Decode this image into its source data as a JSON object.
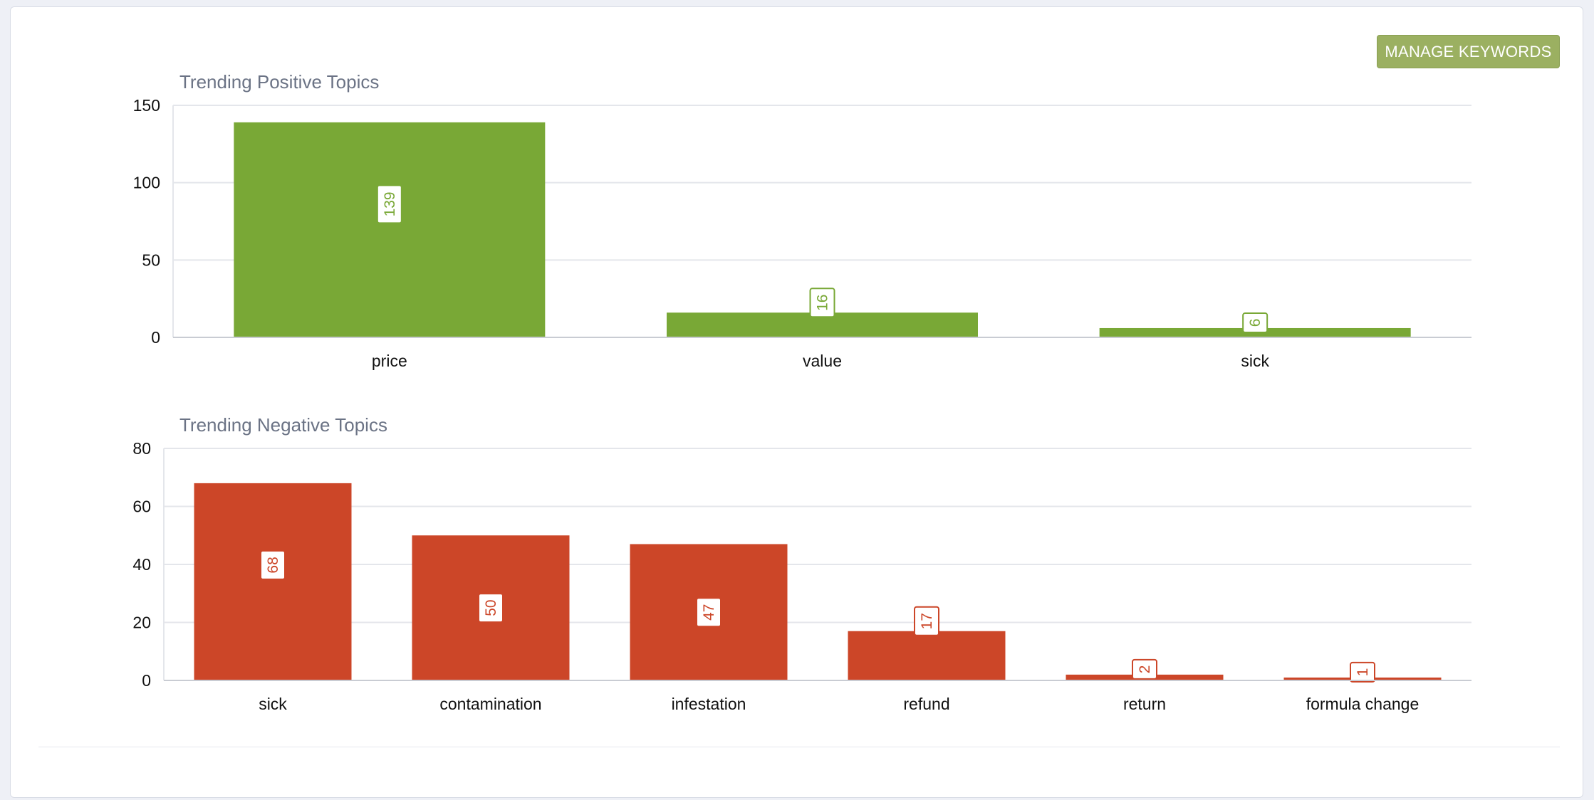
{
  "toolbar": {
    "manage_keywords_label": "MANAGE KEYWORDS"
  },
  "colors": {
    "positive": "#79a836",
    "negative": "#cc4628",
    "button": "#9bb061"
  },
  "chart_data": [
    {
      "type": "bar",
      "title": "Trending Positive Topics",
      "categories": [
        "price",
        "value",
        "sick"
      ],
      "values": [
        139,
        16,
        6
      ],
      "ylim": [
        0,
        150
      ],
      "yticks": [
        0,
        50,
        100,
        150
      ],
      "xlabel": "",
      "ylabel": "",
      "grid": true,
      "color": "#79a836"
    },
    {
      "type": "bar",
      "title": "Trending Negative Topics",
      "categories": [
        "sick",
        "contamination",
        "infestation",
        "refund",
        "return",
        "formula change"
      ],
      "values": [
        68,
        50,
        47,
        17,
        2,
        1
      ],
      "ylim": [
        0,
        80
      ],
      "yticks": [
        0,
        20,
        40,
        60,
        80
      ],
      "xlabel": "",
      "ylabel": "",
      "grid": true,
      "color": "#cc4628"
    }
  ]
}
